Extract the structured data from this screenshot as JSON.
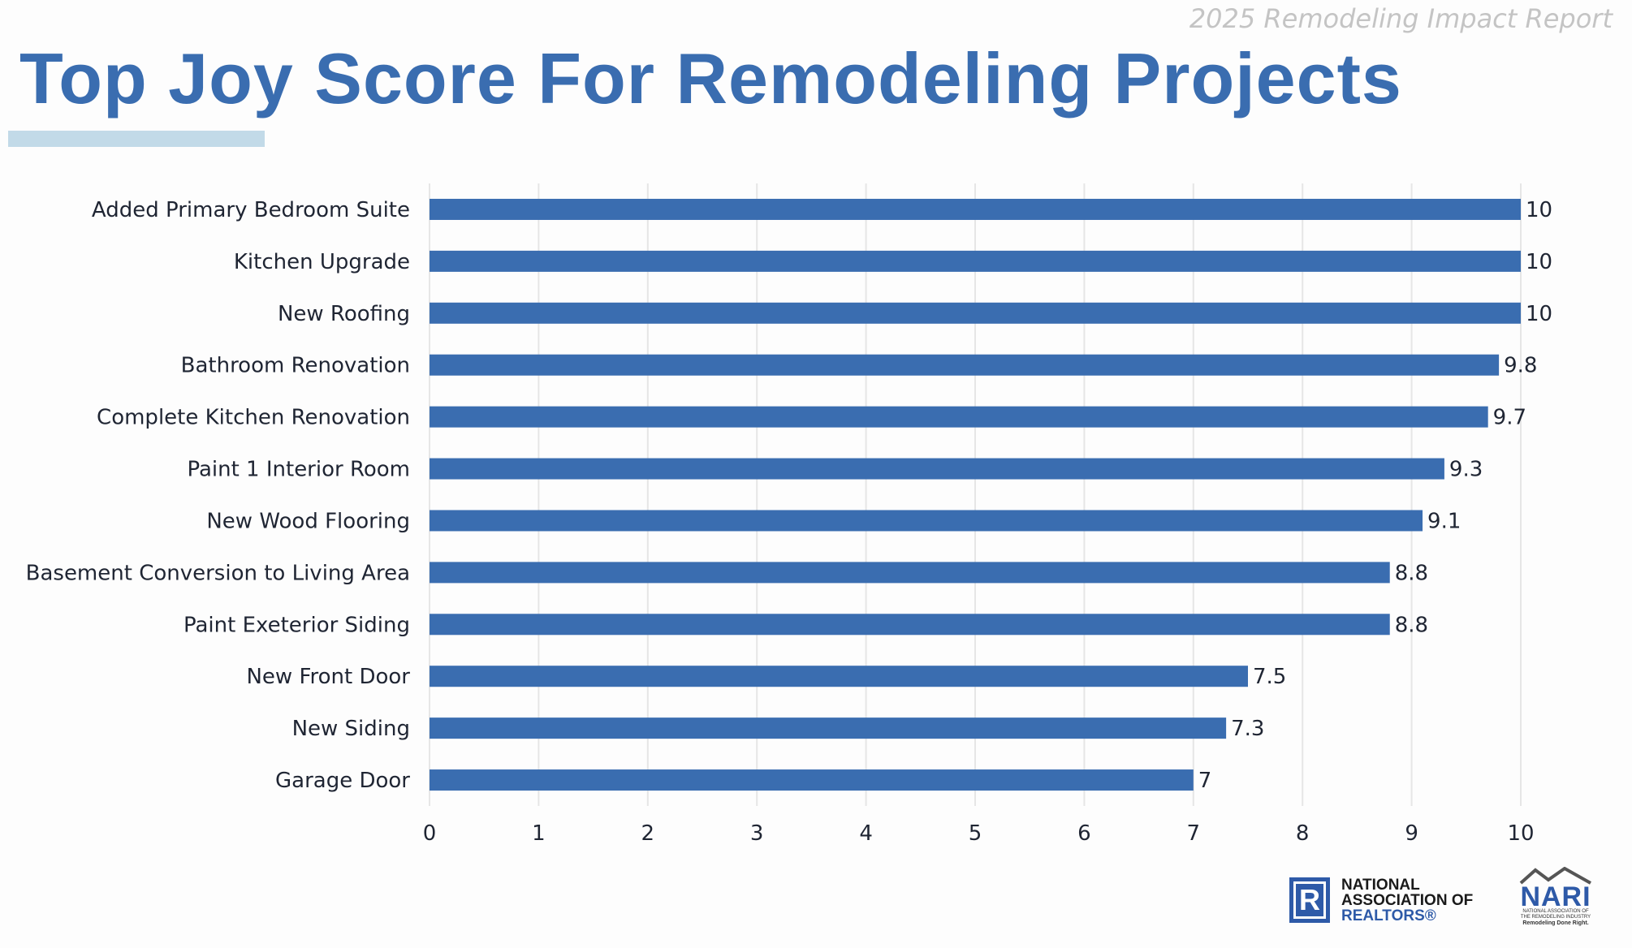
{
  "header": {
    "report_label": "2025 Remodeling Impact Report",
    "title": "Top Joy Score For Remodeling Projects"
  },
  "colors": {
    "title": "#3a6db0",
    "bar": "#3a6db0",
    "underline": "#c2dae8",
    "grid": "#e6e6e6",
    "text": "#1f2533"
  },
  "chart_data": {
    "type": "bar",
    "orientation": "horizontal",
    "categories": [
      "Added Primary Bedroom Suite",
      "Kitchen Upgrade",
      "New Roofing",
      "Bathroom Renovation",
      "Complete Kitchen Renovation",
      "Paint 1 Interior Room",
      "New Wood Flooring",
      "Basement Conversion to Living Area",
      "Paint Exeterior Siding",
      "New Front Door",
      "New Siding",
      "Garage Door"
    ],
    "values": [
      10,
      10,
      10,
      9.8,
      9.7,
      9.3,
      9.1,
      8.8,
      8.8,
      7.5,
      7.3,
      7
    ],
    "data_labels": [
      "10",
      "10",
      "10",
      "9.8",
      "9.7",
      "9.3",
      "9.1",
      "8.8",
      "8.8",
      "7.5",
      "7.3",
      "7"
    ],
    "xlim": [
      0,
      10
    ],
    "xticks": [
      "0",
      "1",
      "2",
      "3",
      "4",
      "5",
      "6",
      "7",
      "8",
      "9",
      "10"
    ],
    "grid": "vertical",
    "legend": "none"
  },
  "logos": {
    "nar": {
      "line1": "NATIONAL",
      "line2": "ASSOCIATION OF",
      "line3": "REALTORS®",
      "mark": "R"
    },
    "nari": {
      "word": "NARI",
      "sub1": "NATIONAL ASSOCIATION OF",
      "sub2": "THE REMODELING INDUSTRY",
      "tag": "Remodeling Done Right."
    }
  }
}
